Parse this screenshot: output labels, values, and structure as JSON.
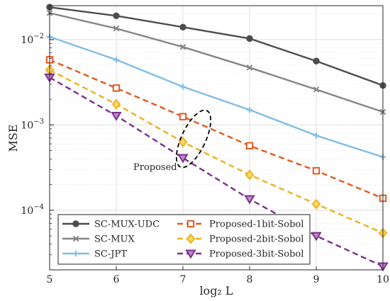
{
  "chart_data": {
    "type": "line",
    "xlabel": "log₂ L",
    "ylabel": "MSE",
    "xlim": [
      5,
      10
    ],
    "ylim": [
      2e-05,
      0.025
    ],
    "yscale": "log",
    "grid": true,
    "legend_position": "bottom-left",
    "x": [
      5,
      6,
      7,
      8,
      9,
      10
    ],
    "x_tick_labels": [
      "5",
      "6",
      "7",
      "8",
      "9",
      "10"
    ],
    "y_ticks": [
      {
        "value": 0.01,
        "base": "10",
        "exp": "−2"
      },
      {
        "value": 0.001,
        "base": "10",
        "exp": "−3"
      },
      {
        "value": 0.0001,
        "base": "10",
        "exp": "−4"
      }
    ],
    "series": [
      {
        "name": "SC-MUX-UDC",
        "color": "#4d4d4d",
        "marker": "circle",
        "dash": "solid",
        "values": [
          0.024,
          0.019,
          0.014,
          0.0103,
          0.0056,
          0.0029
        ]
      },
      {
        "name": "SC-MUX",
        "color": "#858585",
        "marker": "x",
        "dash": "solid",
        "values": [
          0.0205,
          0.0135,
          0.0082,
          0.0047,
          0.0026,
          0.00142
        ]
      },
      {
        "name": "SC-JPT",
        "color": "#80bde6",
        "marker": "plus",
        "dash": "solid",
        "values": [
          0.0108,
          0.0058,
          0.0028,
          0.0015,
          0.00075,
          0.00042
        ]
      },
      {
        "name": "Proposed-1bit-Sobol",
        "color": "#e05a1f",
        "marker": "square",
        "dash": "dashed",
        "values": [
          0.0058,
          0.0027,
          0.00125,
          0.00057,
          0.00029,
          0.000138
        ]
      },
      {
        "name": "Proposed-2bit-Sobol",
        "color": "#edb120",
        "marker": "diamond",
        "dash": "dashed",
        "values": [
          0.0044,
          0.00175,
          0.00063,
          0.00026,
          0.000118,
          5.4e-05
        ]
      },
      {
        "name": "Proposed-3bit-Sobol",
        "color": "#7e2f8e",
        "marker": "triangle-down",
        "dash": "dashed",
        "values": [
          0.0036,
          0.00128,
          0.00041,
          0.000135,
          5e-05,
          2.2e-05
        ]
      }
    ],
    "annotation": {
      "text": "Proposed",
      "x": 7,
      "y": 0.00063
    }
  }
}
